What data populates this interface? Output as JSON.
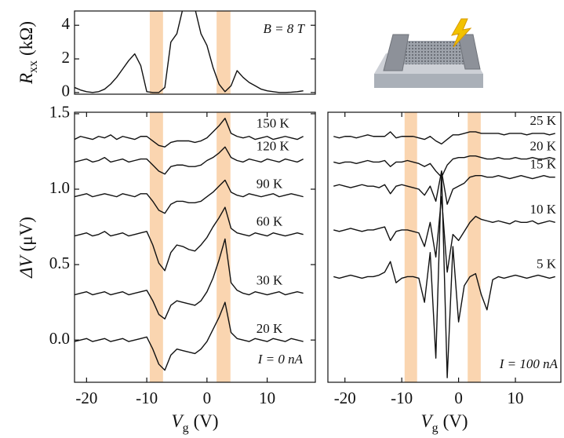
{
  "chart_data": [
    {
      "type": "line",
      "ylabel": [
        "R",
        "xx",
        "(kΩ)"
      ],
      "annotation": "B = 8 T",
      "xlim": [
        -22,
        18
      ],
      "ylim": [
        -0.1,
        4.85
      ],
      "yticks": [
        0,
        2,
        4
      ],
      "bands": [
        [
          -9.5,
          -7.3
        ],
        [
          1.6,
          3.9
        ]
      ],
      "x": [
        -22,
        -21,
        -20,
        -19,
        -18,
        -17,
        -16,
        -15,
        -14,
        -13,
        -12,
        -11,
        -10,
        -9,
        -8,
        -7,
        -6,
        -5,
        -4,
        -3,
        -2,
        -1,
        0,
        1,
        2,
        3,
        4,
        5,
        6,
        7,
        8,
        9,
        10,
        11,
        12,
        13,
        14,
        15,
        16
      ],
      "series": [
        {
          "color": "#111111",
          "values": [
            0.3,
            0.15,
            0.05,
            0,
            0.05,
            0.2,
            0.5,
            0.9,
            1.4,
            1.9,
            2.3,
            1.6,
            0.05,
            0,
            0,
            0.3,
            3.0,
            3.5,
            5.0,
            5.0,
            5.0,
            3.5,
            2.8,
            1.5,
            0.5,
            0.05,
            0.4,
            1.3,
            0.9,
            0.6,
            0.4,
            0.2,
            0.1,
            0.05,
            0,
            0,
            0.02,
            0.05,
            0.1
          ]
        }
      ]
    },
    {
      "type": "line",
      "ylabel": [
        "ΔV",
        "(μV)"
      ],
      "xlabel": [
        "V",
        "g",
        "(V)"
      ],
      "annotation": "I = 0 nA",
      "xlim": [
        -22,
        18
      ],
      "ylim": [
        -0.28,
        1.51
      ],
      "xticks": [
        -20,
        -10,
        0,
        10
      ],
      "yticks": [
        {
          "value": 0,
          "label": "0.0"
        },
        0.5,
        {
          "value": 1,
          "label": "1.0"
        },
        1.5
      ],
      "bands": [
        [
          -9.5,
          -7.3
        ],
        [
          1.6,
          3.9
        ]
      ],
      "x": [
        -22,
        -21,
        -20,
        -19,
        -18,
        -17,
        -16,
        -15,
        -14,
        -13,
        -12,
        -11,
        -10,
        -9,
        -8,
        -7,
        -6,
        -5,
        -4,
        -3,
        -2,
        -1,
        0,
        1,
        2,
        3,
        4,
        5,
        6,
        7,
        8,
        9,
        10,
        11,
        12,
        13,
        14,
        15,
        16
      ],
      "series": [
        {
          "name": "150 K",
          "color": "#111111",
          "values": [
            1.33,
            1.35,
            1.34,
            1.33,
            1.35,
            1.34,
            1.36,
            1.33,
            1.35,
            1.34,
            1.33,
            1.35,
            1.35,
            1.32,
            1.29,
            1.28,
            1.31,
            1.32,
            1.32,
            1.32,
            1.31,
            1.32,
            1.34,
            1.38,
            1.42,
            1.47,
            1.37,
            1.35,
            1.34,
            1.35,
            1.33,
            1.34,
            1.35,
            1.33,
            1.34,
            1.35,
            1.34,
            1.33,
            1.35
          ]
        },
        {
          "name": "120 K",
          "color": "#111111",
          "values": [
            1.18,
            1.19,
            1.2,
            1.18,
            1.19,
            1.21,
            1.18,
            1.19,
            1.2,
            1.18,
            1.19,
            1.2,
            1.2,
            1.16,
            1.12,
            1.1,
            1.15,
            1.16,
            1.16,
            1.15,
            1.15,
            1.16,
            1.19,
            1.21,
            1.24,
            1.28,
            1.21,
            1.19,
            1.18,
            1.2,
            1.19,
            1.18,
            1.2,
            1.19,
            1.18,
            1.2,
            1.19,
            1.18,
            1.2
          ]
        },
        {
          "name": "90 K",
          "color": "#111111",
          "values": [
            0.95,
            0.96,
            0.97,
            0.95,
            0.96,
            0.97,
            0.96,
            0.95,
            0.97,
            0.96,
            0.95,
            0.97,
            0.97,
            0.92,
            0.86,
            0.84,
            0.9,
            0.92,
            0.92,
            0.91,
            0.91,
            0.92,
            0.95,
            0.98,
            1.02,
            1.06,
            0.98,
            0.96,
            0.95,
            0.97,
            0.96,
            0.95,
            0.96,
            0.97,
            0.95,
            0.96,
            0.97,
            0.96,
            0.95
          ]
        },
        {
          "name": "60 K",
          "color": "#111111",
          "values": [
            0.69,
            0.7,
            0.71,
            0.69,
            0.7,
            0.72,
            0.69,
            0.7,
            0.71,
            0.69,
            0.7,
            0.71,
            0.72,
            0.63,
            0.51,
            0.46,
            0.58,
            0.63,
            0.62,
            0.6,
            0.59,
            0.63,
            0.68,
            0.75,
            0.81,
            0.88,
            0.74,
            0.71,
            0.7,
            0.69,
            0.71,
            0.7,
            0.69,
            0.71,
            0.7,
            0.69,
            0.7,
            0.71,
            0.7
          ]
        },
        {
          "name": "30 K",
          "color": "#111111",
          "values": [
            0.3,
            0.31,
            0.32,
            0.3,
            0.31,
            0.32,
            0.3,
            0.31,
            0.32,
            0.3,
            0.31,
            0.32,
            0.33,
            0.26,
            0.17,
            0.14,
            0.23,
            0.26,
            0.25,
            0.24,
            0.23,
            0.26,
            0.32,
            0.41,
            0.53,
            0.67,
            0.38,
            0.33,
            0.31,
            0.3,
            0.32,
            0.31,
            0.3,
            0.31,
            0.32,
            0.3,
            0.31,
            0.32,
            0.31
          ]
        },
        {
          "name": "20 K",
          "color": "#111111",
          "values": [
            -0.01,
            0,
            0.01,
            -0.01,
            0,
            0.01,
            -0.01,
            0,
            0.01,
            -0.01,
            0,
            0.01,
            0.02,
            -0.06,
            -0.16,
            -0.2,
            -0.1,
            -0.06,
            -0.07,
            -0.08,
            -0.09,
            -0.06,
            -0.01,
            0.07,
            0.15,
            0.25,
            0.05,
            0.01,
            0,
            -0.01,
            0.01,
            0,
            -0.01,
            0.01,
            0,
            -0.01,
            0.01,
            0,
            -0.01
          ]
        }
      ]
    },
    {
      "type": "line",
      "xlabel": [
        "V",
        "g",
        "(V)"
      ],
      "annotation": "I = 100 nA",
      "xlim": [
        -23,
        18
      ],
      "ylim": [
        -0.28,
        1.51
      ],
      "xticks": [
        -20,
        -10,
        0,
        10
      ],
      "bands": [
        [
          -9.5,
          -7.3
        ],
        [
          1.6,
          3.9
        ]
      ],
      "x": [
        -22,
        -21,
        -20,
        -19,
        -18,
        -17,
        -16,
        -15,
        -14,
        -13,
        -12,
        -11,
        -10,
        -9,
        -8,
        -7,
        -6,
        -5,
        -4,
        -3,
        -2,
        -1,
        0,
        1,
        2,
        3,
        4,
        5,
        6,
        7,
        8,
        9,
        10,
        11,
        12,
        13,
        14,
        15,
        16,
        17
      ],
      "series": [
        {
          "name": "25 K",
          "color": "#111111",
          "values": [
            1.35,
            1.34,
            1.35,
            1.35,
            1.34,
            1.35,
            1.36,
            1.35,
            1.35,
            1.35,
            1.38,
            1.34,
            1.35,
            1.35,
            1.35,
            1.34,
            1.33,
            1.35,
            1.32,
            1.3,
            1.33,
            1.36,
            1.36,
            1.37,
            1.38,
            1.38,
            1.37,
            1.37,
            1.37,
            1.37,
            1.36,
            1.37,
            1.37,
            1.37,
            1.36,
            1.37,
            1.37,
            1.37,
            1.36,
            1.37
          ]
        },
        {
          "name": "20 K",
          "color": "#111111",
          "values": [
            1.18,
            1.17,
            1.18,
            1.18,
            1.17,
            1.18,
            1.19,
            1.18,
            1.18,
            1.19,
            1.15,
            1.18,
            1.18,
            1.19,
            1.18,
            1.17,
            1.15,
            1.17,
            1.12,
            1.08,
            1.16,
            1.2,
            1.21,
            1.21,
            1.22,
            1.22,
            1.21,
            1.2,
            1.2,
            1.21,
            1.2,
            1.2,
            1.21,
            1.2,
            1.2,
            1.21,
            1.2,
            1.2,
            1.21,
            1.2
          ]
        },
        {
          "name": "15 K",
          "color": "#111111",
          "values": [
            1.02,
            1.03,
            1.02,
            1.01,
            1.02,
            1.03,
            1.02,
            1.02,
            1.01,
            1.03,
            0.97,
            1.02,
            1.03,
            1.02,
            1.01,
            1.0,
            0.96,
            1.02,
            0.92,
            1.12,
            0.9,
            1.0,
            1.02,
            1.04,
            1.08,
            1.09,
            1.09,
            1.08,
            1.08,
            1.09,
            1.08,
            1.07,
            1.08,
            1.09,
            1.08,
            1.07,
            1.08,
            1.09,
            1.08,
            1.08
          ]
        },
        {
          "name": "10 K",
          "color": "#111111",
          "values": [
            0.73,
            0.72,
            0.73,
            0.74,
            0.73,
            0.72,
            0.73,
            0.73,
            0.74,
            0.75,
            0.66,
            0.72,
            0.73,
            0.73,
            0.72,
            0.71,
            0.62,
            0.78,
            0.55,
            0.95,
            0.45,
            0.7,
            0.66,
            0.72,
            0.78,
            0.82,
            0.8,
            0.79,
            0.78,
            0.79,
            0.78,
            0.77,
            0.79,
            0.78,
            0.78,
            0.79,
            0.77,
            0.78,
            0.79,
            0.78
          ]
        },
        {
          "name": "5 K",
          "color": "#111111",
          "values": [
            0.42,
            0.41,
            0.42,
            0.43,
            0.42,
            0.41,
            0.42,
            0.42,
            0.43,
            0.45,
            0.52,
            0.38,
            0.41,
            0.42,
            0.42,
            0.41,
            0.25,
            0.58,
            -0.12,
            1.12,
            -0.25,
            0.62,
            0.12,
            0.36,
            0.42,
            0.44,
            0.3,
            0.2,
            0.4,
            0.42,
            0.41,
            0.42,
            0.43,
            0.42,
            0.41,
            0.42,
            0.43,
            0.42,
            0.41,
            0.42
          ]
        }
      ]
    }
  ]
}
